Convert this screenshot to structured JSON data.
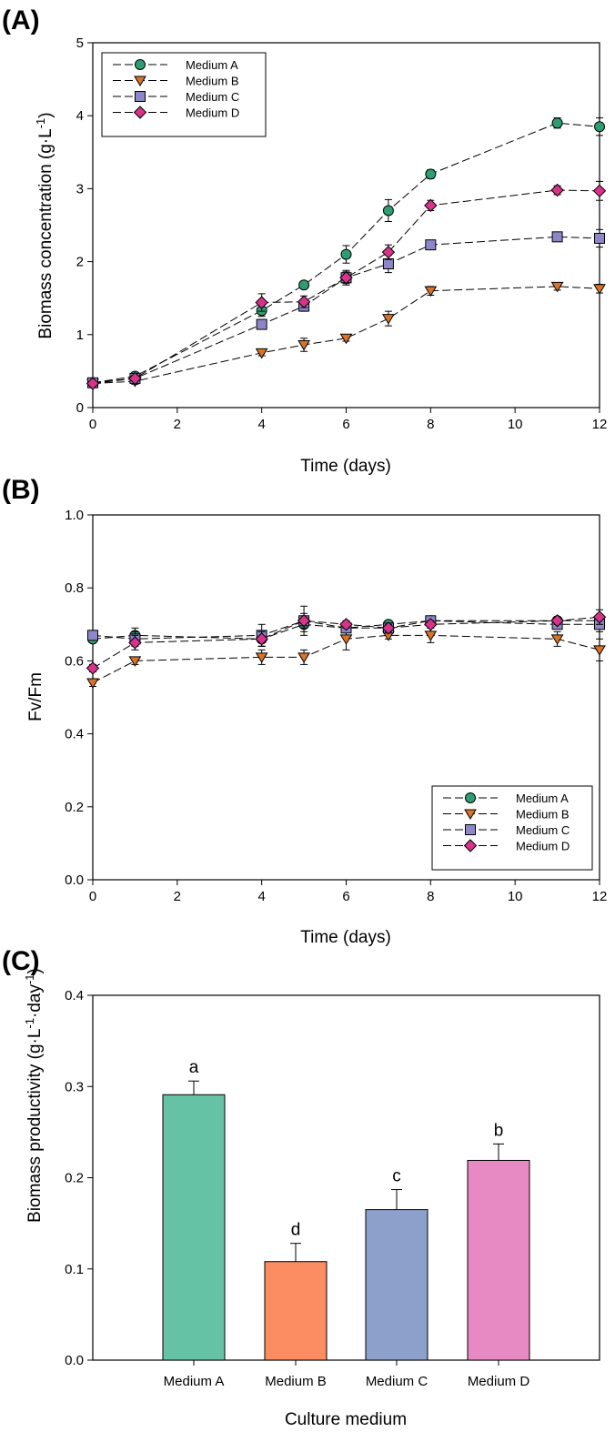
{
  "colors": {
    "medium_a": "#2e9e72",
    "medium_b": "#d9732a",
    "medium_c": "#8d86c8",
    "medium_d": "#d6338a",
    "bar_a": "#66c2a5",
    "bar_b": "#fc8d62",
    "bar_c": "#8da0cb",
    "bar_d": "#e78ac3"
  },
  "chart_data": [
    {
      "panel_label": "(A)",
      "type": "line",
      "xlabel": "Time (days)",
      "ylabel": "Biomass concentration (g·L",
      "ylabel_sup": "-1",
      "ylabel_end": ")",
      "xlim": [
        0,
        12
      ],
      "ylim": [
        0,
        5
      ],
      "xticks": [
        "0",
        "2",
        "4",
        "6",
        "8",
        "10",
        "12"
      ],
      "yticks": [
        "0",
        "1",
        "2",
        "3",
        "4",
        "5"
      ],
      "legend_position": "top-left",
      "x": [
        0,
        1,
        4,
        5,
        6,
        7,
        8,
        11,
        12
      ],
      "series": [
        {
          "name": "Medium A",
          "marker": "circle",
          "values": [
            0.34,
            0.43,
            1.33,
            1.68,
            2.1,
            2.7,
            3.2,
            3.9,
            3.85
          ],
          "errors": [
            0.03,
            0.04,
            0.08,
            0.05,
            0.12,
            0.15,
            0.06,
            0.07,
            0.12
          ]
        },
        {
          "name": "Medium B",
          "marker": "triangle-down",
          "values": [
            0.33,
            0.36,
            0.75,
            0.86,
            0.95,
            1.22,
            1.6,
            1.66,
            1.63
          ],
          "errors": [
            0.03,
            0.04,
            0.04,
            0.09,
            0.04,
            0.1,
            0.06,
            0.05,
            0.06
          ]
        },
        {
          "name": "Medium C",
          "marker": "square",
          "values": [
            0.34,
            0.4,
            1.14,
            1.39,
            1.78,
            1.97,
            2.23,
            2.34,
            2.32
          ],
          "errors": [
            0.03,
            0.04,
            0.05,
            0.07,
            0.1,
            0.12,
            0.05,
            0.05,
            0.12
          ]
        },
        {
          "name": "Medium D",
          "marker": "diamond",
          "values": [
            0.33,
            0.4,
            1.44,
            1.45,
            1.78,
            2.13,
            2.77,
            2.98,
            2.97
          ],
          "errors": [
            0.03,
            0.04,
            0.12,
            0.08,
            0.08,
            0.1,
            0.07,
            0.06,
            0.13
          ]
        }
      ]
    },
    {
      "panel_label": "(B)",
      "type": "line",
      "xlabel": "Time (days)",
      "ylabel": "Fv/Fm",
      "xlim": [
        0,
        12
      ],
      "ylim": [
        0,
        1.0
      ],
      "xticks": [
        "0",
        "2",
        "4",
        "6",
        "8",
        "10",
        "12"
      ],
      "yticks": [
        "0.0",
        "0.2",
        "0.4",
        "0.6",
        "0.8",
        "1.0"
      ],
      "legend_position": "bottom-right",
      "x": [
        0,
        1,
        4,
        5,
        6,
        7,
        8,
        11,
        12
      ],
      "series": [
        {
          "name": "Medium A",
          "marker": "circle",
          "values": [
            0.66,
            0.67,
            0.66,
            0.7,
            0.69,
            0.7,
            0.71,
            0.71,
            0.71
          ],
          "errors": [
            0.01,
            0.02,
            0.02,
            0.02,
            0.01,
            0.01,
            0.01,
            0.01,
            0.01
          ]
        },
        {
          "name": "Medium B",
          "marker": "triangle-down",
          "values": [
            0.54,
            0.6,
            0.61,
            0.61,
            0.66,
            0.67,
            0.67,
            0.66,
            0.63
          ],
          "errors": [
            0.01,
            0.01,
            0.02,
            0.02,
            0.03,
            0.01,
            0.02,
            0.02,
            0.03
          ]
        },
        {
          "name": "Medium C",
          "marker": "square",
          "values": [
            0.67,
            0.66,
            0.67,
            0.71,
            0.69,
            0.69,
            0.71,
            0.7,
            0.7
          ],
          "errors": [
            0.01,
            0.02,
            0.03,
            0.04,
            0.01,
            0.01,
            0.01,
            0.01,
            0.02
          ]
        },
        {
          "name": "Medium D",
          "marker": "diamond",
          "values": [
            0.58,
            0.65,
            0.66,
            0.71,
            0.7,
            0.69,
            0.7,
            0.71,
            0.72
          ],
          "errors": [
            0.01,
            0.02,
            0.02,
            0.02,
            0.01,
            0.01,
            0.01,
            0.01,
            0.02
          ]
        }
      ]
    },
    {
      "panel_label": "(C)",
      "type": "bar",
      "xlabel": "Culture medium",
      "ylabel": "Biomass productivity (g·L",
      "ylabel_sup1": "-1",
      "ylabel_mid": "·day",
      "ylabel_sup2": "-1",
      "ylabel_end": ")",
      "ylim": [
        0,
        0.4
      ],
      "yticks": [
        "0.0",
        "0.1",
        "0.2",
        "0.3",
        "0.4"
      ],
      "categories": [
        "Medium A",
        "Medium B",
        "Medium C",
        "Medium D"
      ],
      "values": [
        0.291,
        0.108,
        0.165,
        0.219
      ],
      "errors": [
        0.015,
        0.02,
        0.022,
        0.018
      ],
      "significance": [
        "a",
        "d",
        "c",
        "b"
      ]
    }
  ]
}
